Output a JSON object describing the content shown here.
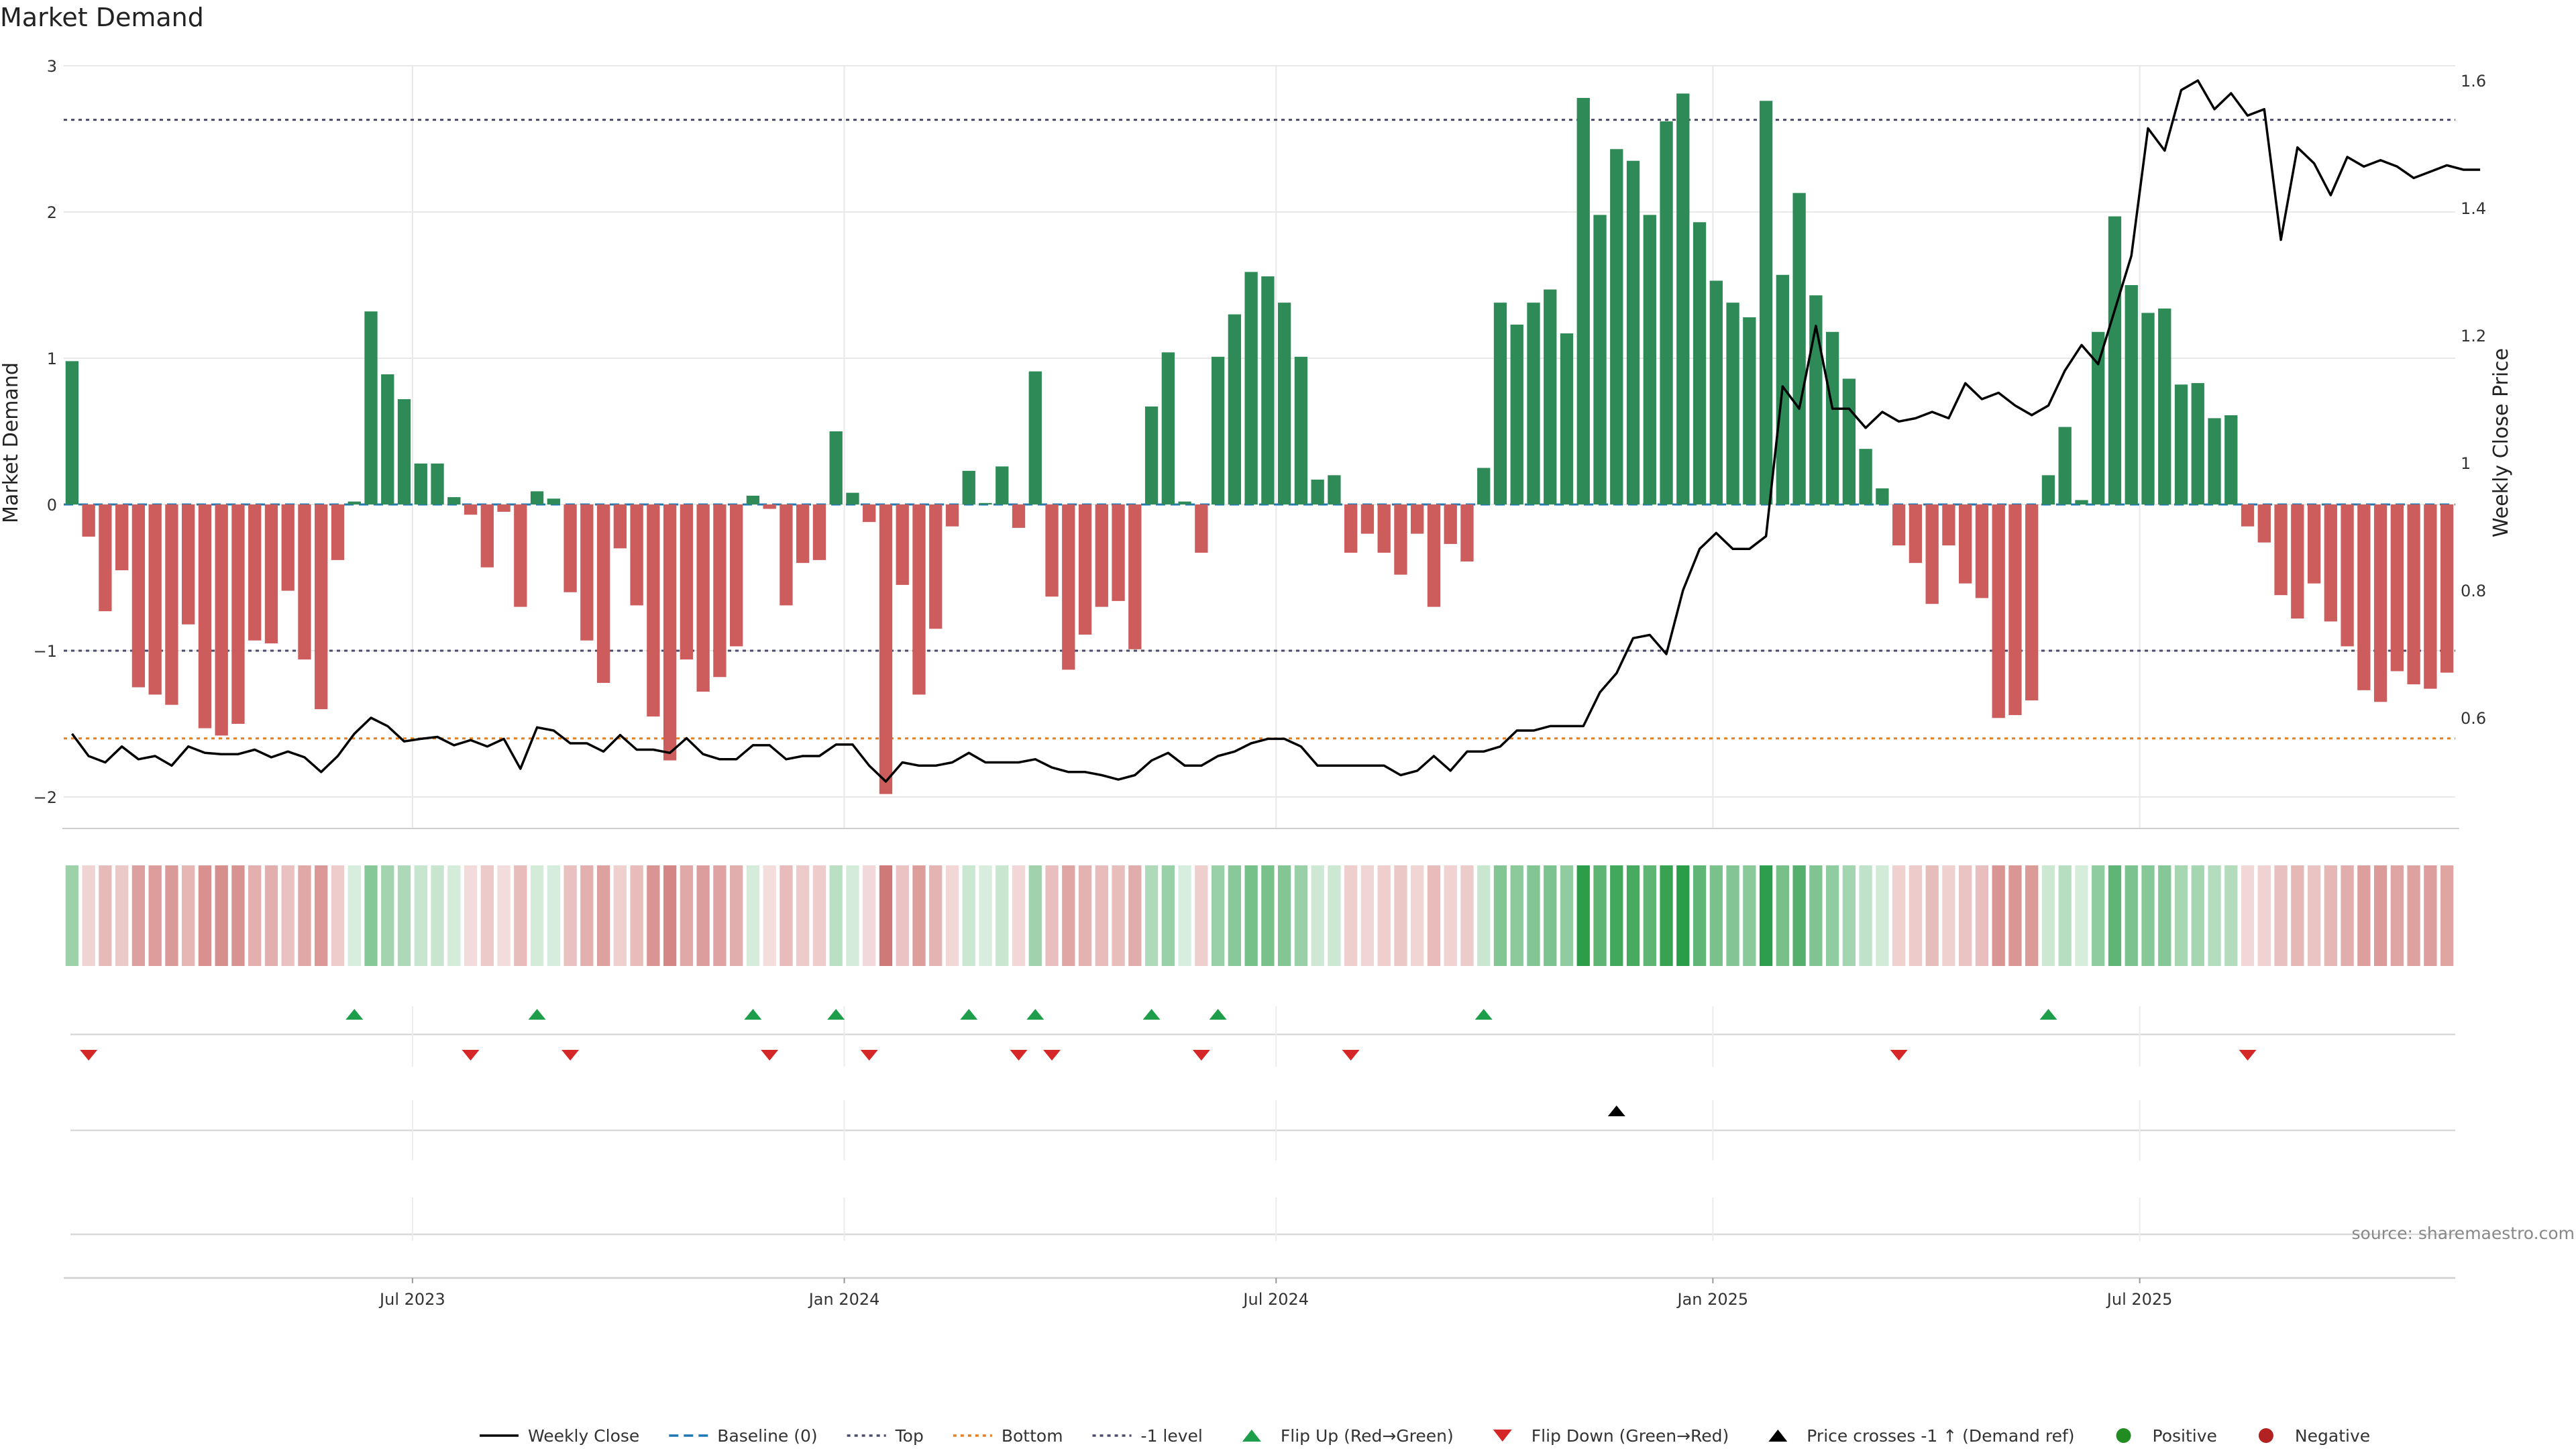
{
  "title": "Market Demand",
  "source": "source: sharemaestro.com",
  "colors": {
    "positive_bar": "#2e8b57",
    "negative_bar": "#cd5c5c",
    "price_line": "#000000",
    "flip_up": "#1e9e4a",
    "flip_down": "#d62728",
    "cross_marker": "#000000",
    "top_line": "#4a4a6a",
    "bottom_line": "#e67e22",
    "minus1_line": "#4a4a6a",
    "baseline": "#1f77b4",
    "grid": "#e8e8e8"
  },
  "chart_data": {
    "type": "bar",
    "title": "Market Demand",
    "ylabel": "Market Demand",
    "y2label": "Weekly Close Price",
    "ylim": [
      -2.2,
      3.0
    ],
    "y2lim": [
      0.47,
      1.63
    ],
    "yticks": [
      "3",
      "2",
      "1",
      "0",
      "−2"
    ],
    "ytick_values": [
      3,
      2,
      1,
      0,
      -2
    ],
    "yticks_extra": [
      {
        "label": "−1",
        "value": -1
      }
    ],
    "y2ticks": [
      "1.6",
      "1.4",
      "1.2",
      "1",
      "0.8",
      "0.6"
    ],
    "y2tick_values": [
      1.6,
      1.4,
      1.2,
      1.0,
      0.8,
      0.6
    ],
    "xticks": [
      "Jul 2023",
      "Jan 2024",
      "Jul 2024",
      "Jan 2025",
      "Jul 2025"
    ],
    "xtick_index": [
      21,
      47,
      73,
      99.3,
      125
    ],
    "reference_lines": {
      "top": 2.63,
      "bottom": -1.6,
      "minus1": -1.0,
      "baseline": 0
    },
    "demand": [
      0.98,
      -0.22,
      -0.73,
      -0.45,
      -1.25,
      -1.3,
      -1.37,
      -0.82,
      -1.53,
      -1.58,
      -1.5,
      -0.93,
      -0.95,
      -0.59,
      -1.06,
      -1.4,
      -0.38,
      0.02,
      1.32,
      0.89,
      0.72,
      0.28,
      0.28,
      0.05,
      -0.07,
      -0.43,
      -0.05,
      -0.7,
      0.09,
      0.04,
      -0.6,
      -0.93,
      -1.22,
      -0.3,
      -0.69,
      -1.45,
      -1.75,
      -1.06,
      -1.28,
      -1.18,
      -0.97,
      0.06,
      -0.03,
      -0.69,
      -0.4,
      -0.38,
      0.5,
      0.08,
      -0.12,
      -1.98,
      -0.55,
      -1.3,
      -0.85,
      -0.15,
      0.23,
      0.01,
      0.26,
      -0.16,
      0.91,
      -0.63,
      -1.13,
      -0.89,
      -0.7,
      -0.66,
      -0.99,
      0.67,
      1.04,
      0.02,
      -0.33,
      1.01,
      1.3,
      1.59,
      1.56,
      1.38,
      1.01,
      0.17,
      0.2,
      -0.33,
      -0.2,
      -0.33,
      -0.48,
      -0.2,
      -0.7,
      -0.27,
      -0.39,
      0.25,
      1.38,
      1.23,
      1.38,
      1.47,
      1.17,
      2.78,
      1.98,
      2.43,
      2.35,
      1.98,
      2.62,
      2.81,
      1.93,
      1.53,
      1.38,
      1.28,
      2.76,
      1.57,
      2.13,
      1.43,
      1.18,
      0.86,
      0.38,
      0.11,
      -0.28,
      -0.4,
      -0.68,
      -0.28,
      -0.54,
      -0.64,
      -1.46,
      -1.44,
      -1.34,
      0.2,
      0.53,
      0.03,
      1.18,
      1.97,
      1.5,
      1.31,
      1.34,
      0.82,
      0.83,
      0.59,
      0.61,
      -0.15,
      -0.26,
      -0.62,
      -0.78,
      -0.54,
      -0.8,
      -0.97,
      -1.27,
      -1.35,
      -1.14,
      -1.23,
      -1.26,
      -1.15
    ],
    "weekly_close": [
      0.575,
      0.54,
      0.53,
      0.555,
      0.535,
      0.54,
      0.525,
      0.555,
      0.545,
      0.543,
      0.543,
      0.55,
      0.538,
      0.547,
      0.538,
      0.515,
      0.54,
      0.575,
      0.6,
      0.587,
      0.563,
      0.567,
      0.57,
      0.557,
      0.565,
      0.555,
      0.567,
      0.52,
      0.585,
      0.58,
      0.56,
      0.56,
      0.547,
      0.573,
      0.55,
      0.55,
      0.545,
      0.568,
      0.543,
      0.535,
      0.535,
      0.557,
      0.557,
      0.535,
      0.54,
      0.54,
      0.558,
      0.558,
      0.525,
      0.5,
      0.53,
      0.525,
      0.525,
      0.53,
      0.545,
      0.53,
      0.53,
      0.53,
      0.535,
      0.522,
      0.515,
      0.515,
      0.51,
      0.503,
      0.51,
      0.533,
      0.545,
      0.525,
      0.525,
      0.54,
      0.547,
      0.56,
      0.567,
      0.567,
      0.555,
      0.525,
      0.525,
      0.525,
      0.525,
      0.525,
      0.51,
      0.517,
      0.54,
      0.517,
      0.547,
      0.547,
      0.555,
      0.58,
      0.58,
      0.587,
      0.587,
      0.587,
      0.64,
      0.67,
      0.725,
      0.73,
      0.7,
      0.8,
      0.865,
      0.89,
      0.865,
      0.865,
      0.885,
      1.12,
      1.085,
      1.215,
      1.085,
      1.085,
      1.055,
      1.08,
      1.065,
      1.07,
      1.08,
      1.07,
      1.125,
      1.1,
      1.11,
      1.09,
      1.075,
      1.09,
      1.145,
      1.185,
      1.155,
      1.24,
      1.325,
      1.525,
      1.49,
      1.585,
      1.6,
      1.555,
      1.58,
      1.545,
      1.555,
      1.35,
      1.495,
      1.47,
      1.42,
      1.48,
      1.465,
      1.475,
      1.465,
      1.447,
      1.457,
      1.467,
      1.46,
      1.46
    ],
    "flip_up": [
      17,
      28,
      41,
      46,
      54,
      58,
      65,
      69,
      85,
      119
    ],
    "flip_down": [
      1,
      24,
      30,
      42,
      48,
      57,
      59,
      68,
      77,
      110,
      131
    ],
    "price_cross_minus1_up": [
      93
    ],
    "legend": [
      {
        "label": "Weekly Close",
        "kind": "solid-line",
        "color": "#000000"
      },
      {
        "label": "Baseline (0)",
        "kind": "dashed-line",
        "color": "#1f77b4"
      },
      {
        "label": "Top",
        "kind": "dotted-line",
        "color": "#4a4a6a"
      },
      {
        "label": "Bottom",
        "kind": "dotted-line",
        "color": "#e67e22"
      },
      {
        "label": "-1 level",
        "kind": "dotted-line",
        "color": "#4a4a6a"
      },
      {
        "label": "Flip Up (Red→Green)",
        "kind": "triangle-up",
        "color": "#1e9e4a"
      },
      {
        "label": "Flip Down (Green→Red)",
        "kind": "triangle-down",
        "color": "#d62728"
      },
      {
        "label": "Price crosses -1 ↑ (Demand ref)",
        "kind": "triangle-up",
        "color": "#000000"
      },
      {
        "label": "Positive",
        "kind": "circle",
        "color": "#228b22"
      },
      {
        "label": "Negative",
        "kind": "circle",
        "color": "#b22222"
      }
    ]
  }
}
